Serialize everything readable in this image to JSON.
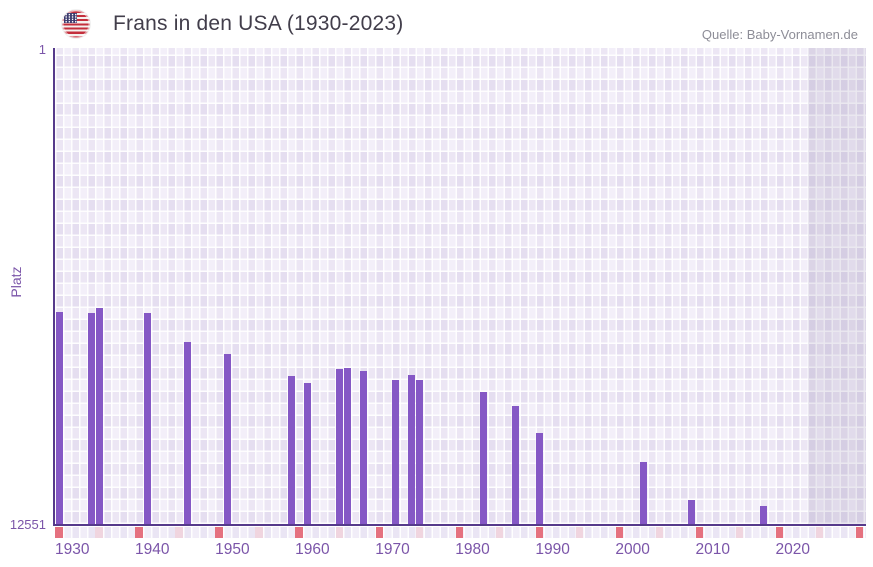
{
  "header": {
    "title": "Frans in den USA (1930-2023)",
    "source": "Quelle: Baby-Vornamen.de",
    "flag_icon": "us-flag-icon"
  },
  "y_axis": {
    "label": "Platz",
    "top_tick": "1",
    "bottom_tick": "12551"
  },
  "chart_data": {
    "type": "bar",
    "title": "Frans in den USA (1930-2023)",
    "xlabel": "",
    "ylabel": "Platz",
    "y_inverted": true,
    "ylim": [
      1,
      12551
    ],
    "x_domain_start": 1930,
    "x_domain_end": 2031.3,
    "grid": "checkered-lavender",
    "legend": "none",
    "future_band_start_year": 2024,
    "x_tick_years": [
      1930,
      1940,
      1950,
      1960,
      1970,
      1980,
      1990,
      2000,
      2010,
      2020
    ],
    "series": [
      {
        "name": "Platz",
        "color": "#8558c5",
        "points": [
          {
            "year": 1930,
            "rank": 6950
          },
          {
            "year": 1934,
            "rank": 6980
          },
          {
            "year": 1935,
            "rank": 6850
          },
          {
            "year": 1941,
            "rank": 6990
          },
          {
            "year": 1946,
            "rank": 7740
          },
          {
            "year": 1951,
            "rank": 8070
          },
          {
            "year": 1959,
            "rank": 8650
          },
          {
            "year": 1961,
            "rank": 8830
          },
          {
            "year": 1965,
            "rank": 8470
          },
          {
            "year": 1966,
            "rank": 8440
          },
          {
            "year": 1968,
            "rank": 8510
          },
          {
            "year": 1972,
            "rank": 8750
          },
          {
            "year": 1974,
            "rank": 8610
          },
          {
            "year": 1975,
            "rank": 8750
          },
          {
            "year": 1983,
            "rank": 9070
          },
          {
            "year": 1987,
            "rank": 9440
          },
          {
            "year": 1990,
            "rank": 10160
          },
          {
            "year": 2003,
            "rank": 10910
          },
          {
            "year": 2009,
            "rank": 11920
          },
          {
            "year": 2018,
            "rank": 12080
          }
        ]
      }
    ],
    "navigator_marks": {
      "dark_color": "#e5717f",
      "light_color": "#f0d5df",
      "dark_years": [
        1930,
        1940,
        1950,
        1960,
        1970,
        1980,
        1990,
        2000,
        2010,
        2020,
        2030
      ],
      "light_years": [
        1935,
        1945,
        1955,
        1965,
        1975,
        1985,
        1995,
        2005,
        2015,
        2025
      ]
    }
  }
}
